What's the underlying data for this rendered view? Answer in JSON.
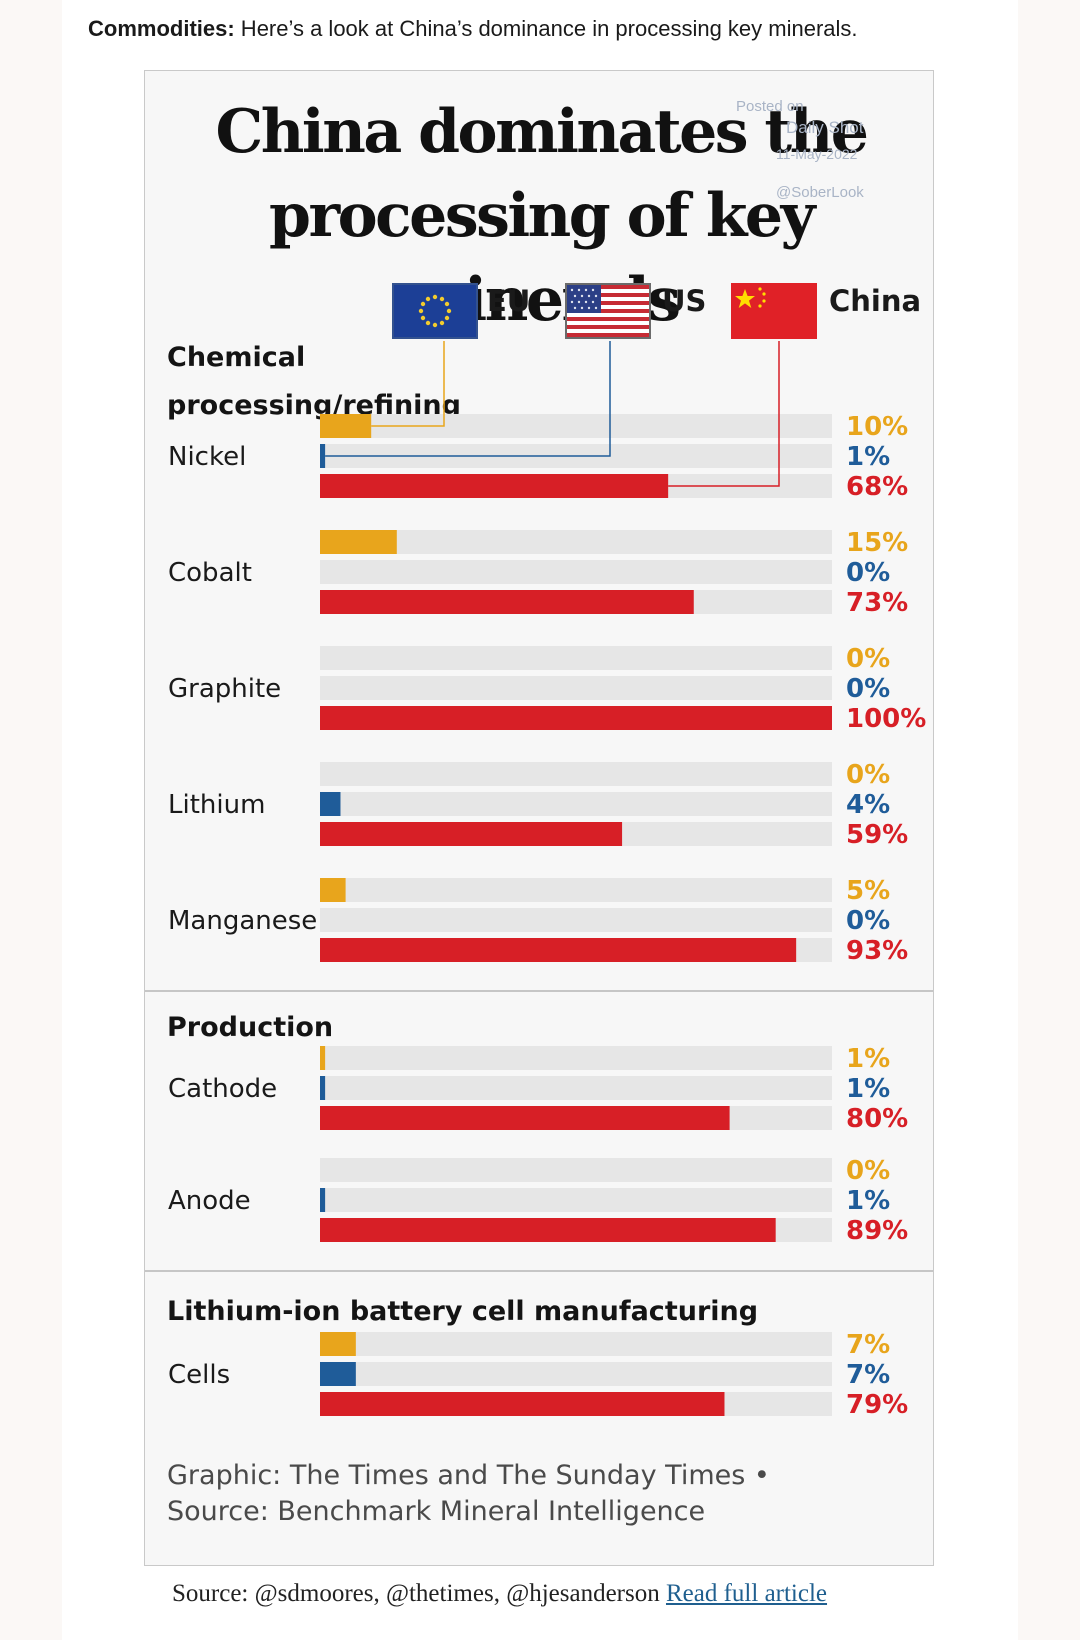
{
  "intro": {
    "lead": "Commodities:",
    "text": " Here’s a look at China’s dominance in processing key minerals."
  },
  "title_line1": "China dominates the",
  "title_line2": "processing of key minerals",
  "watermark": {
    "line1": "Posted on",
    "line2": "Daily Shot",
    "line3": "11-May-2022",
    "line4": "@SoberLook"
  },
  "legend": [
    {
      "name": "EU",
      "color": "#e8a51c",
      "flag_icon": "eu-flag-icon"
    },
    {
      "name": "US",
      "color": "#1f5c99",
      "flag_icon": "us-flag-icon"
    },
    {
      "name": "China",
      "color": "#d71f26",
      "flag_icon": "china-flag-icon"
    }
  ],
  "colors": {
    "eu": "#e8a51c",
    "us": "#1f5c99",
    "china": "#d71f26",
    "track": "#e6e6e6"
  },
  "sections": [
    {
      "label": "Chemical processing/refining"
    },
    {
      "label": "Production"
    },
    {
      "label": "Lithium-ion battery cell manufacturing"
    }
  ],
  "chart_data": {
    "type": "bar",
    "orientation": "horizontal",
    "title": "China dominates the processing of key minerals",
    "xlim": [
      0,
      100
    ],
    "unit": "%",
    "series": [
      {
        "name": "EU",
        "values": [
          10,
          15,
          0,
          0,
          5,
          1,
          0,
          7
        ]
      },
      {
        "name": "US",
        "values": [
          1,
          0,
          0,
          4,
          0,
          1,
          1,
          7
        ]
      },
      {
        "name": "China",
        "values": [
          68,
          73,
          100,
          59,
          93,
          80,
          89,
          79
        ]
      }
    ],
    "categories": [
      "Nickel",
      "Cobalt",
      "Graphite",
      "Lithium",
      "Manganese",
      "Cathode",
      "Anode",
      "Cells"
    ],
    "groups": [
      {
        "section": "Chemical processing/refining",
        "categories": [
          "Nickel",
          "Cobalt",
          "Graphite",
          "Lithium",
          "Manganese"
        ]
      },
      {
        "section": "Production",
        "categories": [
          "Cathode",
          "Anode"
        ]
      },
      {
        "section": "Lithium-ion battery cell manufacturing",
        "categories": [
          "Cells"
        ]
      }
    ],
    "value_labels": [
      [
        "10%",
        "1%",
        "68%"
      ],
      [
        "15%",
        "0%",
        "73%"
      ],
      [
        "0%",
        "0%",
        "100%"
      ],
      [
        "0%",
        "4%",
        "59%"
      ],
      [
        "5%",
        "0%",
        "93%"
      ],
      [
        "1%",
        "1%",
        "80%"
      ],
      [
        "0%",
        "1%",
        "89%"
      ],
      [
        "7%",
        "7%",
        "79%"
      ]
    ]
  },
  "footnote": {
    "line1": "Graphic: The Times and The Sunday Times •",
    "line2": "Source: Benchmark Mineral Intelligence"
  },
  "source": {
    "text": "Source: @sdmoores, @thetimes, @hjesanderson ",
    "link": "Read full article"
  }
}
